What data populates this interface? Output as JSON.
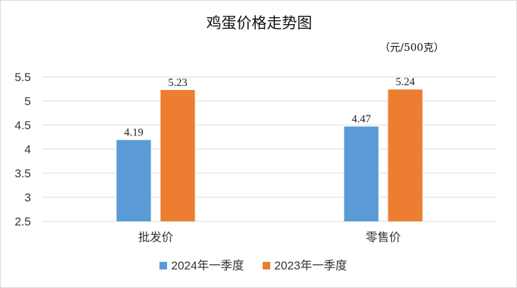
{
  "chart_data": {
    "type": "bar",
    "title": "鸡蛋价格走势图",
    "unit_label": "（元/500克）",
    "categories": [
      "批发价",
      "零售价"
    ],
    "series": [
      {
        "name": "2024年一季度",
        "values": [
          4.19,
          4.47
        ],
        "labels": [
          "4.19",
          "4.47"
        ],
        "color": "#5b9bd5"
      },
      {
        "name": "2023年一季度",
        "values": [
          5.23,
          5.24
        ],
        "labels": [
          "5.23",
          "5.24"
        ],
        "color": "#ed7d31"
      }
    ],
    "ylim": [
      2.5,
      5.5
    ],
    "yticks": [
      "2.5",
      "3",
      "3.5",
      "4",
      "4.5",
      "5",
      "5.5"
    ],
    "grid": true,
    "legend_position": "bottom"
  }
}
